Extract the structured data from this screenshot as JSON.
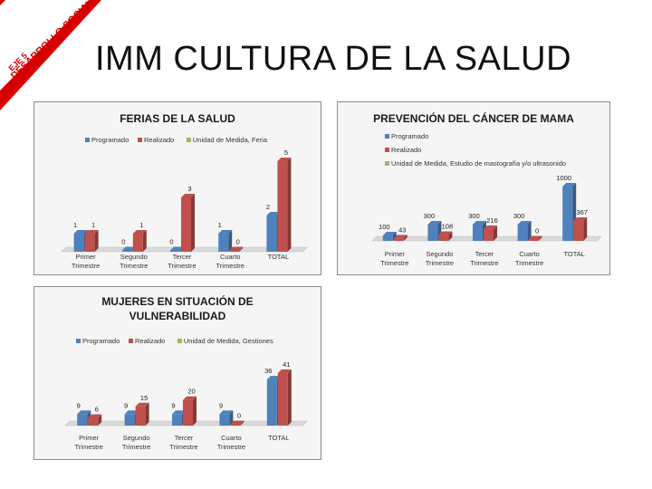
{
  "banner": {
    "line1": "EJE 5",
    "line2": "DESARROLLO SOCIAL",
    "color": "#d60000"
  },
  "page_title": "IMM CULTURA DE LA SALUD",
  "colors": {
    "programado": "#4f81bd",
    "realizado": "#c0504d",
    "unidad": "#9bbb59"
  },
  "chart_data": [
    {
      "type": "bar",
      "title": [
        "FERIAS DE LA SALUD"
      ],
      "legend": [
        "Programado",
        "Realizado",
        "Unidad de Medida, Feria"
      ],
      "legend_layout": "row",
      "categories": [
        [
          "Primer",
          "Trimestre"
        ],
        [
          "Segundo",
          "Trimestre"
        ],
        [
          "Tercer",
          "Trimestre"
        ],
        [
          "Cuarto",
          "Trimestre"
        ],
        [
          "TOTAL"
        ]
      ],
      "series": [
        {
          "name": "Programado",
          "values": [
            1,
            0,
            0,
            1,
            2
          ],
          "labels": [
            "1",
            "0",
            "0",
            "1",
            "2"
          ]
        },
        {
          "name": "Realizado",
          "values": [
            1,
            1,
            3,
            0,
            5
          ],
          "labels": [
            "1",
            "1",
            "3",
            "0",
            "5"
          ]
        }
      ],
      "ymax": 5
    },
    {
      "type": "bar",
      "title": [
        "PREVENCIÓN DEL CÁNCER DE MAMA"
      ],
      "legend": [
        "Programado",
        "Realizado",
        "Unidad de Medida, Estudio de mastografía y/o ultrasonido"
      ],
      "legend_layout": "column",
      "categories": [
        [
          "Primer",
          "Trimestre"
        ],
        [
          "Segundo",
          "Trimestre"
        ],
        [
          "Tercer",
          "Trimestre"
        ],
        [
          "Cuarto",
          "Trimestre"
        ],
        [
          "TOTAL"
        ]
      ],
      "series": [
        {
          "name": "Programado",
          "values": [
            100,
            300,
            300,
            300,
            1000
          ],
          "labels": [
            "100",
            "300",
            "300",
            "300",
            "1000"
          ]
        },
        {
          "name": "Realizado",
          "values": [
            43,
            108,
            216,
            0,
            367
          ],
          "labels": [
            "43",
            "108",
            "216",
            "0",
            "367"
          ]
        }
      ],
      "ymax": 1000
    },
    {
      "type": "bar",
      "title": [
        "MUJERES EN SITUACIÓN DE",
        "VULNERABILIDAD"
      ],
      "legend": [
        "Programado",
        "Realizado",
        "Unidad de Medida, Gestiones"
      ],
      "legend_layout": "row",
      "categories": [
        [
          "Primer",
          "Trimestre"
        ],
        [
          "Segundo",
          "Trimestre"
        ],
        [
          "Tercer",
          "Trimestre"
        ],
        [
          "Cuarto",
          "Trimestre"
        ],
        [
          "TOTAL"
        ]
      ],
      "series": [
        {
          "name": "Programado",
          "values": [
            9,
            9,
            9,
            9,
            36
          ],
          "labels": [
            "9",
            "9",
            "9",
            "9",
            "36"
          ]
        },
        {
          "name": "Realizado",
          "values": [
            6,
            15,
            20,
            0,
            41
          ],
          "labels": [
            "6",
            "15",
            "20",
            "0",
            "41"
          ]
        }
      ],
      "ymax": 41
    }
  ]
}
